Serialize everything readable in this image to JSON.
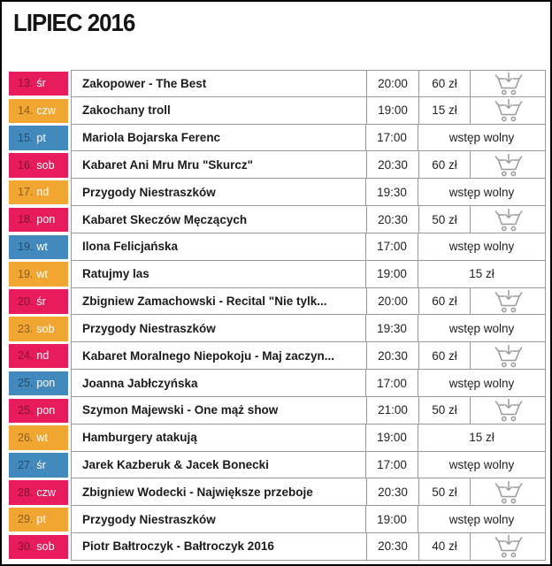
{
  "page": {
    "title": "LIPIEC 2016"
  },
  "colors": {
    "pink": "#e81c5c",
    "orange": "#f2a632",
    "blue": "#4289bd",
    "table_border": "#999999",
    "cart_icon": "#9a9a9a",
    "date_number": "rgba(0,0,0,0.45)",
    "date_day": "#ffffff"
  },
  "icons": {
    "cart": "add-to-cart-icon"
  },
  "rows": [
    {
      "date": "13.",
      "day": "śr",
      "color": "pink",
      "title": "Zakopower - The Best",
      "time": "20:00",
      "price": "60 zł",
      "cart": true,
      "span": false
    },
    {
      "date": "14.",
      "day": "czw",
      "color": "orange",
      "title": "Zakochany troll",
      "time": "19:00",
      "price": "15 zł",
      "cart": true,
      "span": false
    },
    {
      "date": "15.",
      "day": "pt",
      "color": "blue",
      "title": "Mariola Bojarska Ferenc",
      "time": "17:00",
      "price": "wstęp wolny",
      "cart": false,
      "span": true
    },
    {
      "date": "16.",
      "day": "sob",
      "color": "pink",
      "title": "Kabaret Ani Mru Mru \"Skurcz\"",
      "time": "20:30",
      "price": "60 zł",
      "cart": true,
      "span": false
    },
    {
      "date": "17.",
      "day": "nd",
      "color": "orange",
      "title": "Przygody Niestraszków",
      "time": "19:30",
      "price": "wstęp wolny",
      "cart": false,
      "span": true
    },
    {
      "date": "18.",
      "day": "pon",
      "color": "pink",
      "title": "Kabaret Skeczów Męczących",
      "time": "20:30",
      "price": "50 zł",
      "cart": true,
      "span": false
    },
    {
      "date": "19.",
      "day": "wt",
      "color": "blue",
      "title": "Ilona Felicjańska",
      "time": "17:00",
      "price": "wstęp wolny",
      "cart": false,
      "span": true
    },
    {
      "date": "19.",
      "day": "wt",
      "color": "orange",
      "title": "Ratujmy las",
      "time": "19:00",
      "price": "15 zł",
      "cart": false,
      "span": true
    },
    {
      "date": "20.",
      "day": "śr",
      "color": "pink",
      "title": "Zbigniew Zamachowski - Recital \"Nie tylk...",
      "time": "20:00",
      "price": "60 zł",
      "cart": true,
      "span": false
    },
    {
      "date": "23.",
      "day": "sob",
      "color": "orange",
      "title": "Przygody Niestraszków",
      "time": "19:30",
      "price": "wstęp wolny",
      "cart": false,
      "span": true
    },
    {
      "date": "24.",
      "day": "nd",
      "color": "pink",
      "title": "Kabaret Moralnego Niepokoju - Maj zaczyn...",
      "time": "20:30",
      "price": "60 zł",
      "cart": true,
      "span": false
    },
    {
      "date": "25.",
      "day": "pon",
      "color": "blue",
      "title": "Joanna Jabłczyńska",
      "time": "17:00",
      "price": "wstęp wolny",
      "cart": false,
      "span": true
    },
    {
      "date": "25.",
      "day": "pon",
      "color": "pink",
      "title": "Szymon Majewski - One mąż show",
      "time": "21:00",
      "price": "50 zł",
      "cart": true,
      "span": false
    },
    {
      "date": "26.",
      "day": "wt",
      "color": "orange",
      "title": "Hamburgery atakują",
      "time": "19:00",
      "price": "15 zł",
      "cart": false,
      "span": true
    },
    {
      "date": "27.",
      "day": "śr",
      "color": "blue",
      "title": "Jarek Kazberuk & Jacek Bonecki",
      "time": "17:00",
      "price": "wstęp wolny",
      "cart": false,
      "span": true
    },
    {
      "date": "28.",
      "day": "czw",
      "color": "pink",
      "title": "Zbigniew Wodecki - Największe przeboje",
      "time": "20:30",
      "price": "50 zł",
      "cart": true,
      "span": false
    },
    {
      "date": "29.",
      "day": "pt",
      "color": "orange",
      "title": "Przygody Niestraszków",
      "time": "19:00",
      "price": "wstęp wolny",
      "cart": false,
      "span": true
    },
    {
      "date": "30.",
      "day": "sob",
      "color": "pink",
      "title": "Piotr Bałtroczyk - Bałtroczyk 2016",
      "time": "20:30",
      "price": "40 zł",
      "cart": true,
      "span": false
    }
  ]
}
